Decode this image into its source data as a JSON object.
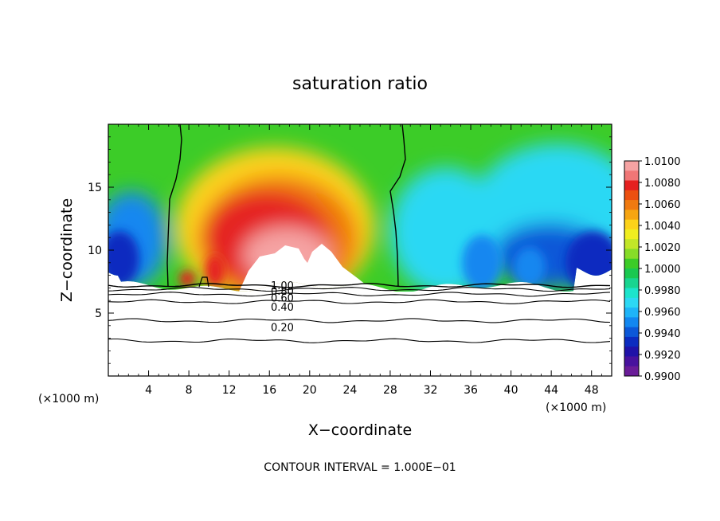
{
  "chart_data": {
    "type": "contour",
    "title": "saturation ratio",
    "xlabel": "X−coordinate",
    "ylabel": "Z−coordinate",
    "x_units_left": "(×1000 m)",
    "x_units_right": "(×1000 m)",
    "xlim": [
      0,
      50
    ],
    "ylim": [
      0,
      20
    ],
    "x_ticks": [
      4,
      8,
      12,
      16,
      20,
      24,
      28,
      32,
      36,
      40,
      44,
      48
    ],
    "y_ticks": [
      5,
      10,
      15
    ],
    "colorbar": {
      "labels": [
        "1.0100",
        "1.0080",
        "1.0060",
        "1.0040",
        "1.0020",
        "1.0000",
        "0.9980",
        "0.9960",
        "0.9940",
        "0.9920",
        "0.9900"
      ],
      "colors": [
        "#f5a3a3",
        "#f07676",
        "#e52020",
        "#ec5010",
        "#f07a10",
        "#f6a512",
        "#fcd21a",
        "#f0ee20",
        "#c2e628",
        "#86dc28",
        "#3ccc28",
        "#1ac850",
        "#18d590",
        "#1ce4cc",
        "#2cd8f4",
        "#1eb4f8",
        "#1287f0",
        "#0c58d8",
        "#0c2cc0",
        "#2012a8",
        "#48129e",
        "#6a1c98"
      ]
    },
    "contour_interval_text": "CONTOUR INTERVAL = 1.000E−01",
    "contour_lines": [
      {
        "level": "1.00",
        "label": "1.00",
        "z": 7.2
      },
      {
        "level": "0.80",
        "label": "0.80",
        "z": 6.9
      },
      {
        "level": "0.60",
        "label": "0.60",
        "z": 6.5
      },
      {
        "level": "0.40",
        "label": "0.40",
        "z": 5.9
      },
      {
        "level": "0.20",
        "label": "0.20",
        "z": 4.4
      },
      {
        "level": "0.10",
        "label": "",
        "z": 2.8
      }
    ],
    "grid": false
  }
}
